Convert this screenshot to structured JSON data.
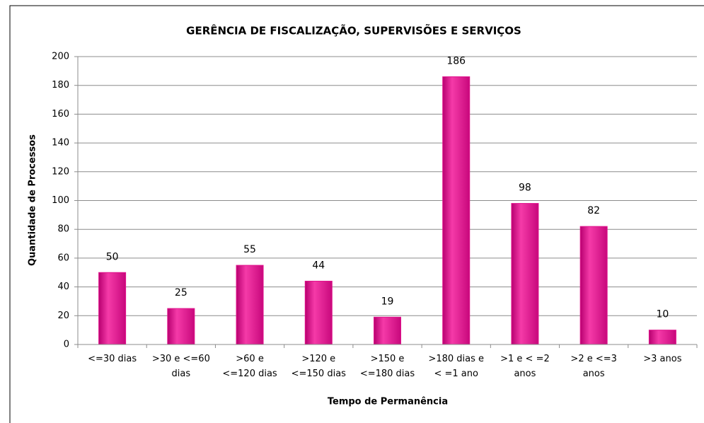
{
  "chart_data": {
    "type": "bar",
    "title": "GERÊNCIA DE FISCALIZAÇÃO, SUPERVISÕES E SERVIÇOS",
    "x_label": "Tempo de Permanência",
    "y_label": "Quantidade de Processos",
    "categories": [
      "<=30 dias",
      ">30 e <=60\ndias",
      ">60 e\n<=120 dias",
      ">120 e\n<=150 dias",
      ">150 e\n<=180 dias",
      ">180 dias e\n< =1 ano",
      ">1 e < =2\nanos",
      ">2 e <=3\nanos",
      ">3 anos"
    ],
    "values": [
      50,
      25,
      55,
      44,
      19,
      186,
      98,
      82,
      10
    ],
    "color": "#e0138c",
    "ylim": [
      0,
      200
    ],
    "yticks": [
      0,
      20,
      40,
      60,
      80,
      100,
      120,
      140,
      160,
      180,
      200
    ],
    "grid": true
  }
}
